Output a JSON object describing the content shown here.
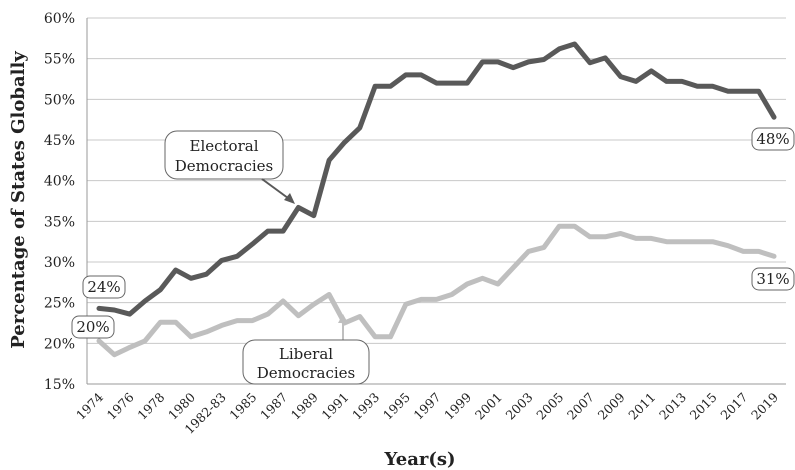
{
  "chart_data": {
    "type": "line",
    "ylabel": "Percentage of States Globally",
    "xlabel": "Year(s)",
    "ylim": [
      15,
      60
    ],
    "y_ticks": [
      "15%",
      "20%",
      "25%",
      "30%",
      "35%",
      "40%",
      "45%",
      "50%",
      "55%",
      "60%"
    ],
    "categories": [
      "1974",
      "1975",
      "1976",
      "1977",
      "1978",
      "1979",
      "1980",
      "1981",
      "1982-83",
      "1984",
      "1985",
      "1986",
      "1987",
      "1988",
      "1989",
      "1990",
      "1991",
      "1992",
      "1993",
      "1994",
      "1995",
      "1996",
      "1997",
      "1998",
      "1999",
      "2000",
      "2001",
      "2002",
      "2003",
      "2004",
      "2005",
      "2006",
      "2007",
      "2008",
      "2009",
      "2010",
      "2011",
      "2012",
      "2013",
      "2014",
      "2015",
      "2016",
      "2017",
      "2018",
      "2019"
    ],
    "x_tick_labels": [
      "1974",
      "1976",
      "1978",
      "1980",
      "1982-83",
      "1985",
      "1987",
      "1989",
      "1991",
      "1993",
      "1995",
      "1997",
      "1999",
      "2001",
      "2003",
      "2005",
      "2007",
      "2009",
      "2011",
      "2013",
      "2015",
      "2017",
      "2019"
    ],
    "grid": true,
    "series": [
      {
        "name": "Electoral Democracies",
        "color": "#595959",
        "values": [
          24.3,
          24.1,
          23.6,
          25.2,
          26.6,
          29.0,
          28.0,
          28.5,
          30.2,
          30.7,
          32.2,
          33.8,
          33.8,
          36.7,
          35.7,
          42.5,
          44.7,
          46.5,
          51.6,
          51.6,
          53.0,
          53.0,
          52.0,
          52.0,
          52.0,
          54.6,
          54.6,
          53.9,
          54.6,
          54.9,
          56.2,
          56.8,
          54.5,
          55.1,
          52.8,
          52.2,
          53.5,
          52.2,
          52.2,
          51.6,
          51.6,
          51.0,
          51.0,
          51.0,
          47.8
        ],
        "end_label": "48%",
        "start_label": "24%"
      },
      {
        "name": "Liberal Democracies",
        "color": "#bfbfbf",
        "values": [
          20.3,
          18.6,
          19.5,
          20.3,
          22.6,
          22.6,
          20.8,
          21.4,
          22.2,
          22.8,
          22.8,
          23.6,
          25.2,
          23.4,
          24.8,
          26.0,
          22.5,
          23.3,
          20.8,
          20.8,
          24.8,
          25.4,
          25.4,
          26.0,
          27.3,
          28.0,
          27.3,
          29.3,
          31.3,
          31.8,
          34.4,
          34.4,
          33.1,
          33.1,
          33.5,
          32.9,
          32.9,
          32.5,
          32.5,
          32.5,
          32.5,
          32.0,
          31.3,
          31.3,
          30.7
        ],
        "end_label": "31%",
        "start_label": "20%"
      }
    ]
  },
  "annotations": {
    "electoral_line1": "Electoral",
    "electoral_line2": "Democracies",
    "liberal_line1": "Liberal",
    "liberal_line2": "Democracies"
  }
}
